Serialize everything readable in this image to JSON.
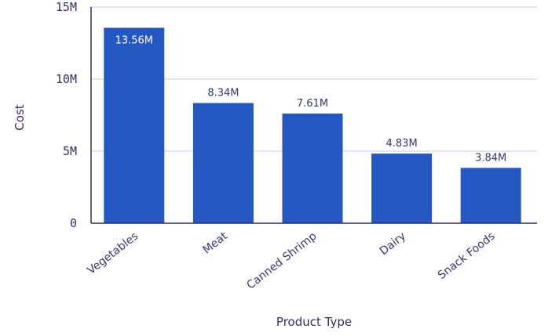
{
  "chart_data": {
    "type": "bar",
    "categories": [
      "Vegetables",
      "Meat",
      "Canned Shrimp",
      "Dairy",
      "Snack Foods"
    ],
    "values": [
      13.56,
      8.34,
      7.61,
      4.83,
      3.84
    ],
    "value_labels": [
      "13.56M",
      "8.34M",
      "7.61M",
      "4.83M",
      "3.84M"
    ],
    "unit": "M",
    "xlabel": "Product Type",
    "ylabel": "Cost",
    "ylim": [
      0,
      15
    ],
    "yticks": [
      0,
      5,
      10,
      15
    ],
    "ytick_labels": [
      "0",
      "5M",
      "10M",
      "15M"
    ],
    "grid": true,
    "colors": {
      "bar": "#2557c2",
      "text": "#2e2f6b",
      "grid": "#c8cbe0"
    }
  }
}
